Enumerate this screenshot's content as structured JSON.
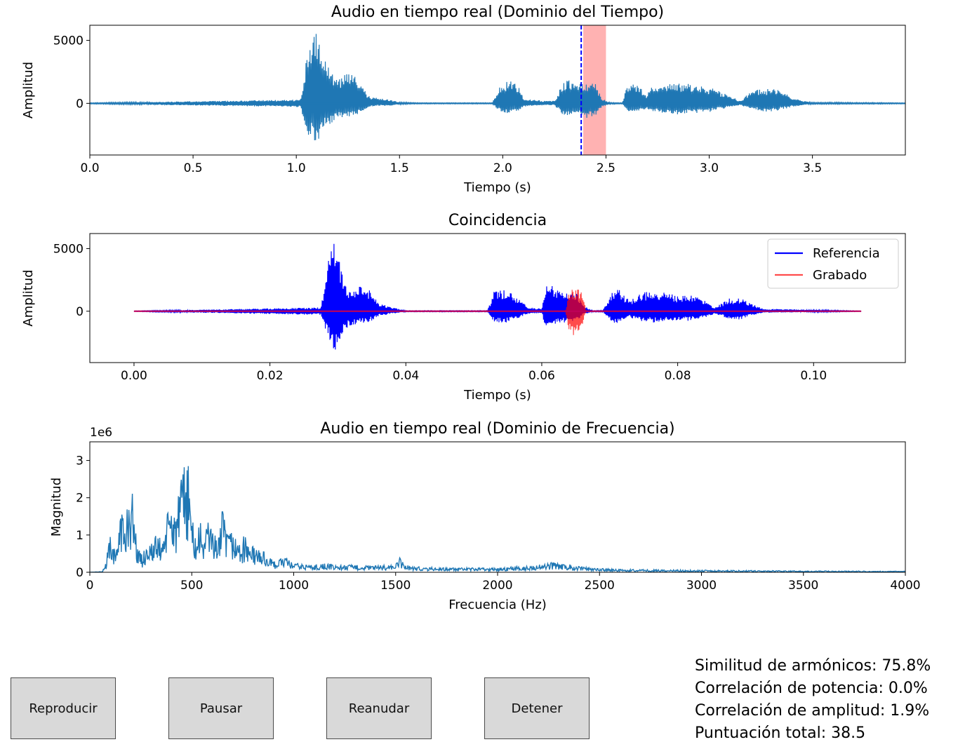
{
  "chart_data": [
    {
      "type": "line",
      "title": "Audio en tiempo real (Dominio del Tiempo)",
      "xlabel": "Tiempo (s)",
      "ylabel": "Amplitud",
      "xlim": [
        0.0,
        3.95
      ],
      "ylim": [
        -4100,
        6200
      ],
      "xticks": [
        "0.0",
        "0.5",
        "1.0",
        "1.5",
        "2.0",
        "2.5",
        "3.0",
        "3.5"
      ],
      "xtick_values": [
        0.0,
        0.5,
        1.0,
        1.5,
        2.0,
        2.5,
        3.0,
        3.5
      ],
      "yticks": [
        "0",
        "5000"
      ],
      "ytick_values": [
        0,
        5000
      ],
      "series": [
        {
          "color": "#1f77b4",
          "envelope_x": [
            0.0,
            1.02,
            1.05,
            1.08,
            1.1,
            1.12,
            1.15,
            1.2,
            1.25,
            1.3,
            1.35,
            1.4,
            1.45,
            1.5,
            1.6,
            1.95,
            1.98,
            2.02,
            2.05,
            2.08,
            2.1,
            2.15,
            2.2,
            2.25,
            2.3,
            2.33,
            2.36,
            2.4,
            2.45,
            2.48,
            2.52,
            2.58,
            2.6,
            2.63,
            2.65,
            2.7,
            2.72,
            2.75,
            2.8,
            2.85,
            2.9,
            3.0,
            3.05,
            3.1,
            3.15,
            3.2,
            3.25,
            3.3,
            3.35,
            3.4,
            3.45,
            3.5,
            3.95
          ],
          "envelope_upper": [
            40,
            300,
            3600,
            5000,
            5900,
            4500,
            3200,
            1800,
            2600,
            1900,
            600,
            400,
            300,
            100,
            40,
            40,
            1200,
            1800,
            1700,
            1300,
            400,
            300,
            200,
            200,
            1900,
            2000,
            1400,
            1800,
            1700,
            400,
            60,
            40,
            1400,
            1800,
            1500,
            700,
            1400,
            1200,
            1500,
            1600,
            1600,
            1300,
            1000,
            600,
            200,
            1000,
            1100,
            1200,
            1000,
            500,
            200,
            80,
            40
          ],
          "envelope_lower": [
            -40,
            -300,
            -2400,
            -2800,
            -3500,
            -2400,
            -1800,
            -1200,
            -1100,
            -900,
            -300,
            -200,
            -200,
            -80,
            -40,
            -40,
            -600,
            -800,
            -700,
            -600,
            -300,
            -200,
            -150,
            -150,
            -1100,
            -1000,
            -900,
            -1200,
            -1000,
            -300,
            -60,
            -40,
            -600,
            -900,
            -700,
            -400,
            -700,
            -700,
            -800,
            -900,
            -800,
            -700,
            -500,
            -300,
            -150,
            -500,
            -600,
            -700,
            -500,
            -300,
            -150,
            -60,
            -40
          ]
        }
      ],
      "highlight_band": [
        2.39,
        2.5
      ],
      "marker_line": 2.38,
      "grid": false
    },
    {
      "type": "line",
      "title": "Coincidencia",
      "xlabel": "Tiempo (s)",
      "ylabel": "Amplitud",
      "xlim": [
        -0.0065,
        0.1135
      ],
      "ylim": [
        -4100,
        6200
      ],
      "xticks": [
        "0.00",
        "0.02",
        "0.04",
        "0.06",
        "0.08",
        "0.10"
      ],
      "xtick_values": [
        0.0,
        0.02,
        0.04,
        0.06,
        0.08,
        0.1
      ],
      "yticks": [
        "0",
        "5000"
      ],
      "ytick_values": [
        0,
        5000
      ],
      "legend_position": "top-right",
      "series": [
        {
          "name": "Referencia",
          "color": "#0000ff",
          "envelope_x": [
            0.0,
            0.0275,
            0.0285,
            0.0295,
            0.0305,
            0.031,
            0.032,
            0.0335,
            0.0345,
            0.036,
            0.038,
            0.04,
            0.052,
            0.053,
            0.055,
            0.056,
            0.058,
            0.06,
            0.0605,
            0.0615,
            0.0625,
            0.064,
            0.065,
            0.066,
            0.0675,
            0.069,
            0.0705,
            0.0715,
            0.073,
            0.0745,
            0.0765,
            0.0785,
            0.08,
            0.0815,
            0.0835,
            0.0855,
            0.0875,
            0.089,
            0.0905,
            0.0925,
            0.107
          ],
          "envelope_upper": [
            20,
            300,
            4000,
            5800,
            3600,
            2200,
            1500,
            2200,
            1800,
            700,
            300,
            40,
            40,
            1600,
            1700,
            1300,
            300,
            200,
            2100,
            2200,
            1600,
            1700,
            1600,
            500,
            40,
            60,
            1700,
            1700,
            800,
            1500,
            1600,
            1500,
            1200,
            1400,
            1000,
            300,
            1000,
            1100,
            700,
            200,
            20
          ],
          "envelope_lower": [
            -20,
            -300,
            -2000,
            -3600,
            -2100,
            -1500,
            -1100,
            -1000,
            -900,
            -400,
            -200,
            -40,
            -40,
            -900,
            -900,
            -700,
            -200,
            -150,
            -1200,
            -1100,
            -900,
            -1000,
            -900,
            -300,
            -40,
            -60,
            -1000,
            -900,
            -500,
            -800,
            -900,
            -800,
            -700,
            -800,
            -600,
            -200,
            -600,
            -700,
            -400,
            -120,
            -20
          ]
        },
        {
          "name": "Grabado",
          "color": "#ff0000",
          "envelope_x": [
            0.0,
            0.0635,
            0.064,
            0.0645,
            0.065,
            0.0655,
            0.066,
            0.0665,
            0.107
          ],
          "envelope_upper": [
            20,
            30,
            1600,
            2000,
            1900,
            1800,
            1500,
            30,
            20
          ],
          "envelope_lower": [
            -20,
            -30,
            -1700,
            -2200,
            -2000,
            -1600,
            -1100,
            -30,
            -20
          ]
        }
      ],
      "grid": false
    },
    {
      "type": "line",
      "title": "Audio en tiempo real (Dominio de Frecuencia)",
      "xlabel": "Frecuencia (Hz)",
      "ylabel": "Magnitud",
      "scale_label": "1e6",
      "xlim": [
        0,
        4000
      ],
      "ylim": [
        0,
        3.5
      ],
      "xticks": [
        "0",
        "500",
        "1000",
        "1500",
        "2000",
        "2500",
        "3000",
        "3500",
        "4000"
      ],
      "xtick_values": [
        0,
        500,
        1000,
        1500,
        2000,
        2500,
        3000,
        3500,
        4000
      ],
      "yticks": [
        "0",
        "1",
        "2",
        "3"
      ],
      "ytick_values": [
        0,
        1,
        2,
        3
      ],
      "series": [
        {
          "color": "#1f77b4",
          "peaks_x": [
            0,
            60,
            80,
            100,
            110,
            130,
            150,
            165,
            175,
            190,
            210,
            220,
            240,
            260,
            290,
            310,
            330,
            350,
            380,
            400,
            420,
            440,
            460,
            480,
            500,
            520,
            540,
            560,
            590,
            620,
            650,
            680,
            700,
            730,
            760,
            800,
            850,
            900,
            950,
            1000,
            1100,
            1150,
            1200,
            1300,
            1400,
            1500,
            1520,
            1550,
            1600,
            1800,
            2000,
            2200,
            2280,
            2350,
            2450,
            2600,
            3000,
            3500,
            4000
          ],
          "peaks_y": [
            0,
            0.02,
            0.3,
            1.2,
            0.8,
            0.5,
            2.2,
            1.5,
            1.0,
            2.5,
            2.2,
            1.4,
            0.6,
            0.5,
            1.0,
            0.8,
            1.1,
            0.9,
            1.6,
            2.0,
            1.8,
            2.2,
            2.9,
            3.25,
            1.6,
            0.9,
            1.4,
            1.1,
            1.6,
            0.9,
            1.7,
            1.0,
            1.2,
            0.8,
            1.0,
            0.7,
            0.6,
            0.3,
            0.45,
            0.25,
            0.2,
            0.25,
            0.2,
            0.2,
            0.18,
            0.22,
            0.4,
            0.2,
            0.15,
            0.12,
            0.12,
            0.2,
            0.28,
            0.22,
            0.12,
            0.08,
            0.06,
            0.04,
            0.03
          ]
        }
      ],
      "grid": false
    }
  ],
  "controls": {
    "play_label": "Reproducir",
    "pause_label": "Pausar",
    "resume_label": "Reanudar",
    "stop_label": "Detener"
  },
  "stats": {
    "harmonics": "Similitud de armónicos: 75.8%",
    "power": "Correlación de potencia: 0.0%",
    "amplitude": "Correlación de amplitud: 1.9%",
    "total": "Puntuación total: 38.5"
  }
}
